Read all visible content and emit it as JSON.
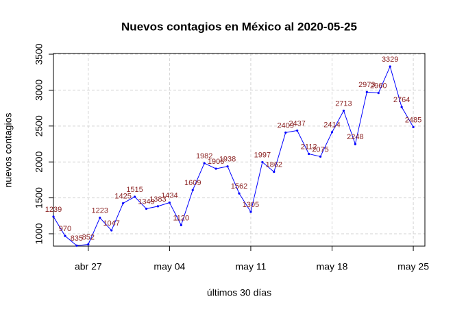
{
  "chart_data": {
    "type": "line",
    "title": "Nuevos contagios en México al 2020-05-25",
    "x_label": "últimos 30 días",
    "y_label": "nuevos contagios",
    "x": [
      "2020-04-24",
      "2020-04-25",
      "2020-04-26",
      "2020-04-27",
      "2020-04-28",
      "2020-04-29",
      "2020-04-30",
      "2020-05-01",
      "2020-05-02",
      "2020-05-03",
      "2020-05-04",
      "2020-05-05",
      "2020-05-06",
      "2020-05-07",
      "2020-05-08",
      "2020-05-09",
      "2020-05-10",
      "2020-05-11",
      "2020-05-12",
      "2020-05-13",
      "2020-05-14",
      "2020-05-15",
      "2020-05-16",
      "2020-05-17",
      "2020-05-18",
      "2020-05-19",
      "2020-05-20",
      "2020-05-21",
      "2020-05-22",
      "2020-05-23",
      "2020-05-24",
      "2020-05-25"
    ],
    "series": [
      {
        "name": "nuevos contagios",
        "color": "#0000ff",
        "label_color": "#8b2323",
        "values": [
          1239,
          970,
          835,
          852,
          1223,
          1047,
          1425,
          1515,
          1349,
          1383,
          1434,
          1120,
          1609,
          1982,
          1906,
          1938,
          1562,
          1305,
          1997,
          1862,
          2409,
          2437,
          2112,
          2075,
          2414,
          2713,
          2248,
          2973,
          2960,
          3329,
          2764,
          2485
        ]
      }
    ],
    "xlim": [
      "2020-04-24",
      "2020-05-26"
    ],
    "xticks": [
      {
        "value": "2020-04-27",
        "label": "abr 27"
      },
      {
        "value": "2020-05-04",
        "label": "may 04"
      },
      {
        "value": "2020-05-11",
        "label": "may 11"
      },
      {
        "value": "2020-05-18",
        "label": "may 18"
      },
      {
        "value": "2020-05-25",
        "label": "may 25"
      }
    ],
    "ylim": [
      828,
      3510
    ],
    "yticks": [
      1000,
      1500,
      2000,
      2500,
      3000,
      3500
    ],
    "grid": true
  }
}
